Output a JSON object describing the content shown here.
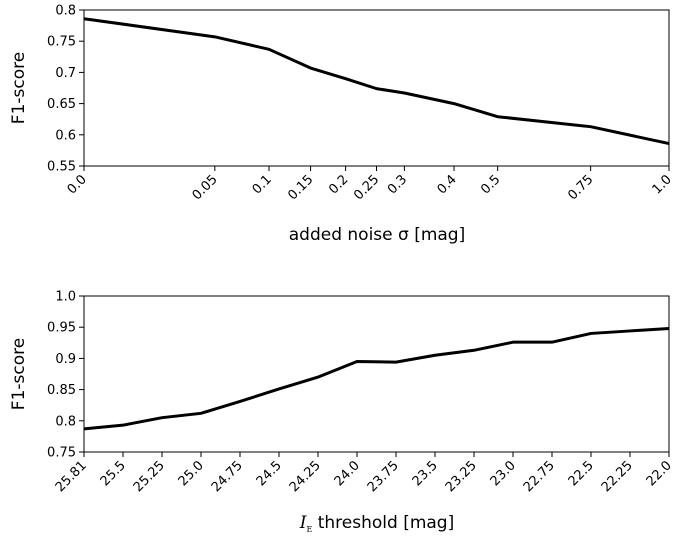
{
  "chart_data": [
    {
      "type": "line",
      "xscale": "sqrt",
      "x": [
        0.0,
        0.05,
        0.1,
        0.15,
        0.2,
        0.25,
        0.3,
        0.4,
        0.5,
        0.75,
        1.0
      ],
      "xticks": [
        "0.0",
        "0.05",
        "0.1",
        "0.15",
        "0.2",
        "0.25",
        "0.3",
        "0.4",
        "0.5",
        "0.75",
        "1.0"
      ],
      "series": [
        {
          "values": [
            0.786,
            0.757,
            0.737,
            0.707,
            0.69,
            0.674,
            0.667,
            0.65,
            0.629,
            0.613,
            0.586
          ]
        }
      ],
      "xlabel": "added noise σ [mag]",
      "ylabel": "F1-score",
      "ylim": [
        0.55,
        0.8
      ],
      "yticks": [
        "0.55",
        "0.6",
        "0.65",
        "0.7",
        "0.75",
        "0.8"
      ],
      "grid": false
    },
    {
      "type": "line",
      "x": [
        25.81,
        25.5,
        25.25,
        25.0,
        24.75,
        24.5,
        24.25,
        24.0,
        23.75,
        23.5,
        23.25,
        23.0,
        22.75,
        22.5,
        22.25,
        22.0
      ],
      "xticks": [
        "25.81",
        "25.5",
        "25.25",
        "25.0",
        "24.75",
        "24.5",
        "24.25",
        "24.0",
        "23.75",
        "23.5",
        "23.25",
        "23.0",
        "22.75",
        "22.5",
        "22.25",
        "22.0"
      ],
      "series": [
        {
          "values": [
            0.787,
            0.793,
            0.805,
            0.812,
            0.831,
            0.851,
            0.87,
            0.895,
            0.894,
            0.905,
            0.913,
            0.926,
            0.926,
            0.94,
            0.944,
            0.948
          ]
        }
      ],
      "xlabel": "I_E threshold [mag]",
      "xlabel_main": "I",
      "xlabel_sub": "E",
      "xlabel_rest": " threshold [mag]",
      "ylabel": "F1-score",
      "ylim": [
        0.75,
        1.0
      ],
      "yticks": [
        "0.75",
        "0.8",
        "0.85",
        "0.9",
        "0.95",
        "1.0"
      ],
      "grid": false
    }
  ]
}
